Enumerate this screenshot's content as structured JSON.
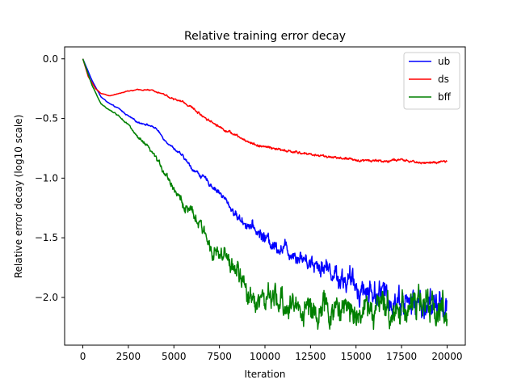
{
  "chart_data": {
    "type": "line",
    "title": "Relative training error decay",
    "xlabel": "Iteration",
    "ylabel": "Relative error decay (log10 scale)",
    "xlim": [
      -1000,
      21000
    ],
    "ylim": [
      -2.4,
      0.1
    ],
    "x_ticks": [
      0,
      2500,
      5000,
      7500,
      10000,
      12500,
      15000,
      17500,
      20000
    ],
    "y_ticks": [
      0.0,
      -0.5,
      -1.0,
      -1.5,
      -2.0
    ],
    "x_tick_labels": [
      "0",
      "2500",
      "5000",
      "7500",
      "10000",
      "12500",
      "15000",
      "17500",
      "20000"
    ],
    "y_tick_labels": [
      "0.0",
      "−0.5",
      "−1.0",
      "−1.5",
      "−2.0"
    ],
    "grid": false,
    "legend_position": "top-right",
    "series": [
      {
        "name": "ub",
        "color": "#0000ff",
        "points": [
          [
            0,
            0.0
          ],
          [
            500,
            -0.18
          ],
          [
            1000,
            -0.32
          ],
          [
            1500,
            -0.38
          ],
          [
            2000,
            -0.42
          ],
          [
            2500,
            -0.48
          ],
          [
            3000,
            -0.53
          ],
          [
            3500,
            -0.55
          ],
          [
            4000,
            -0.58
          ],
          [
            4500,
            -0.68
          ],
          [
            5000,
            -0.75
          ],
          [
            5500,
            -0.82
          ],
          [
            6000,
            -0.92
          ],
          [
            6500,
            -0.98
          ],
          [
            7000,
            -1.05
          ],
          [
            7500,
            -1.12
          ],
          [
            8000,
            -1.22
          ],
          [
            8500,
            -1.33
          ],
          [
            9000,
            -1.38
          ],
          [
            9500,
            -1.44
          ],
          [
            10000,
            -1.5
          ],
          [
            10500,
            -1.56
          ],
          [
            11000,
            -1.58
          ],
          [
            11500,
            -1.62
          ],
          [
            12000,
            -1.66
          ],
          [
            12500,
            -1.7
          ],
          [
            13000,
            -1.72
          ],
          [
            13500,
            -1.76
          ],
          [
            14000,
            -1.82
          ],
          [
            14500,
            -1.86
          ],
          [
            15000,
            -1.9
          ],
          [
            15500,
            -1.94
          ],
          [
            16000,
            -1.95
          ],
          [
            16500,
            -1.98
          ],
          [
            17000,
            -2.02
          ],
          [
            17500,
            -2.02
          ],
          [
            18000,
            -2.05
          ],
          [
            18500,
            -2.06
          ],
          [
            19000,
            -2.08
          ],
          [
            19500,
            -2.06
          ],
          [
            20000,
            -2.05
          ]
        ],
        "noise": [
          [
            0,
            0.0
          ],
          [
            2000,
            0.005
          ],
          [
            5000,
            0.01
          ],
          [
            8000,
            0.03
          ],
          [
            10000,
            0.06
          ],
          [
            12000,
            0.07
          ],
          [
            14000,
            0.1
          ],
          [
            16000,
            0.12
          ],
          [
            18000,
            0.13
          ],
          [
            20000,
            0.13
          ]
        ]
      },
      {
        "name": "ds",
        "color": "#ff0000",
        "points": [
          [
            0,
            0.0
          ],
          [
            300,
            -0.15
          ],
          [
            700,
            -0.25
          ],
          [
            1000,
            -0.29
          ],
          [
            1500,
            -0.31
          ],
          [
            2000,
            -0.29
          ],
          [
            2500,
            -0.27
          ],
          [
            3000,
            -0.26
          ],
          [
            3500,
            -0.26
          ],
          [
            4000,
            -0.27
          ],
          [
            4500,
            -0.3
          ],
          [
            5000,
            -0.34
          ],
          [
            5500,
            -0.36
          ],
          [
            6000,
            -0.41
          ],
          [
            6500,
            -0.47
          ],
          [
            7000,
            -0.52
          ],
          [
            7500,
            -0.57
          ],
          [
            8000,
            -0.61
          ],
          [
            8500,
            -0.65
          ],
          [
            9000,
            -0.69
          ],
          [
            9500,
            -0.72
          ],
          [
            10000,
            -0.74
          ],
          [
            10500,
            -0.75
          ],
          [
            11000,
            -0.77
          ],
          [
            11500,
            -0.78
          ],
          [
            12000,
            -0.79
          ],
          [
            12500,
            -0.8
          ],
          [
            13000,
            -0.81
          ],
          [
            13500,
            -0.82
          ],
          [
            14000,
            -0.83
          ],
          [
            14500,
            -0.84
          ],
          [
            15000,
            -0.85
          ],
          [
            15500,
            -0.85
          ],
          [
            16000,
            -0.85
          ],
          [
            16500,
            -0.86
          ],
          [
            17000,
            -0.85
          ],
          [
            17500,
            -0.85
          ],
          [
            18000,
            -0.86
          ],
          [
            18500,
            -0.87
          ],
          [
            19000,
            -0.87
          ],
          [
            19500,
            -0.87
          ],
          [
            20000,
            -0.86
          ]
        ],
        "noise": [
          [
            0,
            0.0
          ],
          [
            3000,
            0.004
          ],
          [
            6000,
            0.01
          ],
          [
            10000,
            0.012
          ],
          [
            20000,
            0.01
          ]
        ]
      },
      {
        "name": "bff",
        "color": "#008000",
        "points": [
          [
            0,
            0.0
          ],
          [
            500,
            -0.22
          ],
          [
            1000,
            -0.38
          ],
          [
            1500,
            -0.43
          ],
          [
            2000,
            -0.48
          ],
          [
            2500,
            -0.55
          ],
          [
            3000,
            -0.66
          ],
          [
            3500,
            -0.73
          ],
          [
            4000,
            -0.83
          ],
          [
            4500,
            -0.95
          ],
          [
            5000,
            -1.08
          ],
          [
            5500,
            -1.22
          ],
          [
            6000,
            -1.3
          ],
          [
            6500,
            -1.42
          ],
          [
            7000,
            -1.56
          ],
          [
            7500,
            -1.65
          ],
          [
            8000,
            -1.7
          ],
          [
            8500,
            -1.78
          ],
          [
            9000,
            -1.98
          ],
          [
            9500,
            -2.0
          ],
          [
            10000,
            -2.02
          ],
          [
            10500,
            -2.04
          ],
          [
            11000,
            -2.05
          ],
          [
            11500,
            -2.07
          ],
          [
            12000,
            -2.08
          ],
          [
            12500,
            -2.1
          ],
          [
            13000,
            -2.11
          ],
          [
            13500,
            -2.12
          ],
          [
            14000,
            -2.1
          ],
          [
            14500,
            -2.1
          ],
          [
            15000,
            -2.1
          ],
          [
            15500,
            -2.1
          ],
          [
            16000,
            -2.1
          ],
          [
            16500,
            -2.1
          ],
          [
            17000,
            -2.1
          ],
          [
            17500,
            -2.08
          ],
          [
            18000,
            -2.06
          ],
          [
            18500,
            -2.06
          ],
          [
            19000,
            -2.08
          ],
          [
            19500,
            -2.09
          ],
          [
            20000,
            -2.1
          ]
        ],
        "noise": [
          [
            0,
            0.0
          ],
          [
            2000,
            0.006
          ],
          [
            4000,
            0.02
          ],
          [
            6000,
            0.05
          ],
          [
            8000,
            0.08
          ],
          [
            10000,
            0.12
          ],
          [
            13000,
            0.13
          ],
          [
            16000,
            0.14
          ],
          [
            20000,
            0.14
          ]
        ]
      }
    ]
  }
}
